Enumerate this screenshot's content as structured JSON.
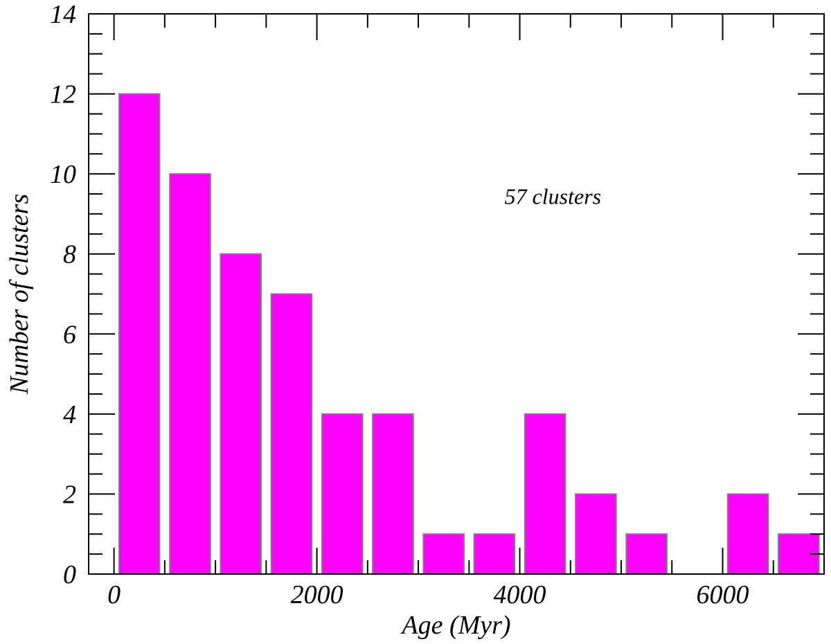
{
  "chart_data": {
    "type": "bar",
    "title": "",
    "xlabel": "Age (Myr)",
    "ylabel": "Number of clusters",
    "annotation": "57 clusters",
    "bin_width": 500,
    "x_bins": [
      0,
      500,
      1000,
      1500,
      2000,
      2500,
      3000,
      3500,
      4000,
      4500,
      5000,
      5500,
      6000,
      6500
    ],
    "values": [
      12,
      10,
      8,
      7,
      4,
      4,
      1,
      1,
      4,
      2,
      1,
      0,
      2,
      1
    ],
    "xlim": [
      -250,
      7000
    ],
    "ylim": [
      0,
      14
    ],
    "x_ticks": [
      0,
      2000,
      4000,
      6000
    ],
    "x_tick_labels": [
      "0",
      "2000",
      "4000",
      "6000"
    ],
    "y_ticks": [
      0,
      2,
      4,
      6,
      8,
      10,
      12,
      14
    ],
    "y_tick_labels": [
      "0",
      "2",
      "4",
      "6",
      "8",
      "10",
      "12",
      "14"
    ],
    "grid": false,
    "legend": "none",
    "colors": {
      "bar_fill": "#ff00ff",
      "bar_stroke": "#808080",
      "axis": "#000000"
    }
  }
}
